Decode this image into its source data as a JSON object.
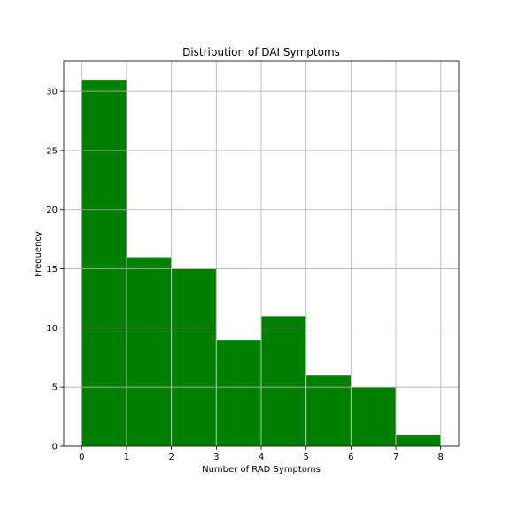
{
  "chart_data": {
    "type": "bar",
    "title": "Distribution of DAI Symptoms",
    "xlabel": "Number of RAD Symptoms",
    "ylabel": "Frequency",
    "bin_edges": [
      0,
      1,
      2,
      3,
      4,
      5,
      6,
      7,
      8
    ],
    "values": [
      31,
      16,
      15,
      9,
      11,
      6,
      5,
      1
    ],
    "xlim": [
      -0.4,
      8.4
    ],
    "ylim": [
      0,
      32.55
    ],
    "xticks": [
      0,
      1,
      2,
      3,
      4,
      5,
      6,
      7,
      8
    ],
    "yticks": [
      0,
      5,
      10,
      15,
      20,
      25,
      30
    ],
    "grid": true,
    "bar_color": "#008000",
    "bar_edge_color": "#ffffff"
  }
}
